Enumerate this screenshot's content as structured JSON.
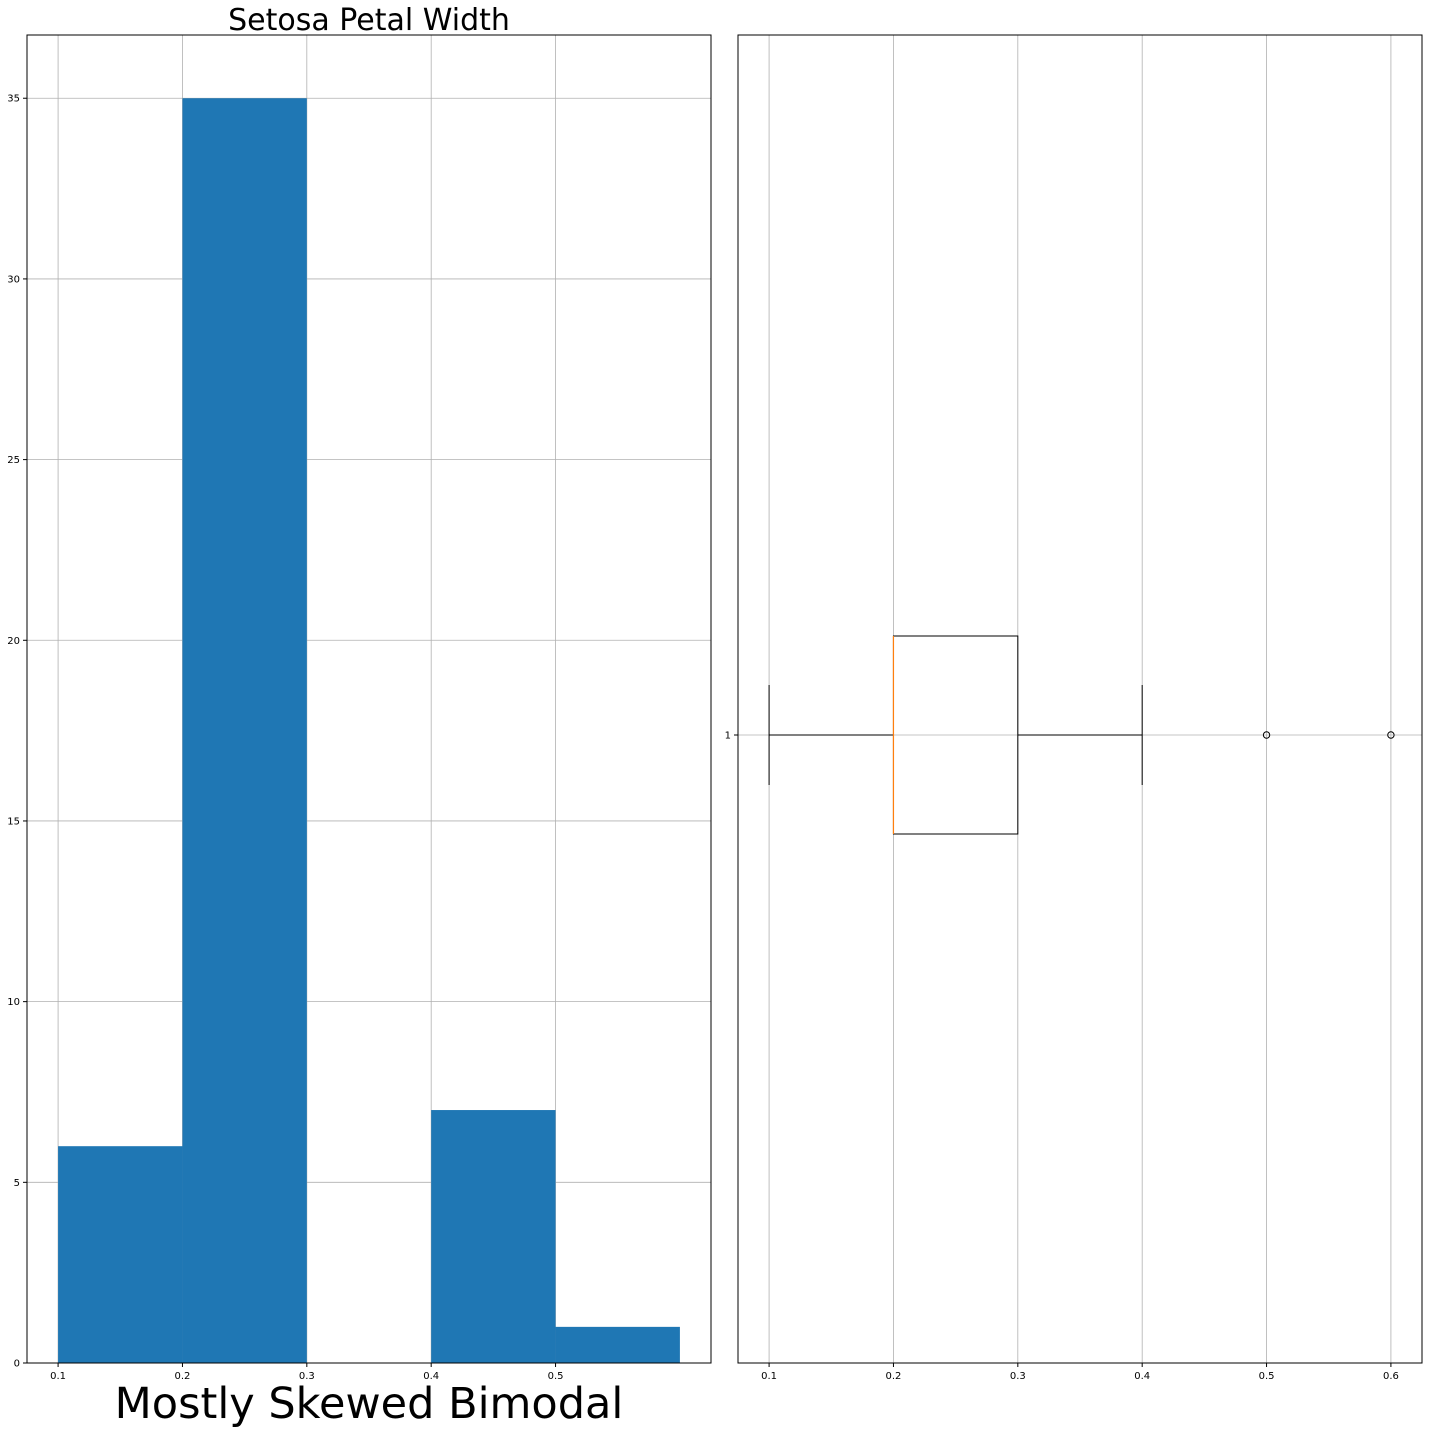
{
  "chart_data": [
    {
      "type": "histogram",
      "title": "Setosa Petal Width",
      "xlabel": "Mostly Skewed Bimodal",
      "ylabel": "",
      "bins": [
        {
          "start": 0.1,
          "end": 0.2,
          "count": 6
        },
        {
          "start": 0.2,
          "end": 0.3,
          "count": 35
        },
        {
          "start": 0.3,
          "end": 0.4,
          "count": 0
        },
        {
          "start": 0.4,
          "end": 0.5,
          "count": 7
        },
        {
          "start": 0.5,
          "end": 0.6,
          "count": 1
        }
      ],
      "xlim": [
        0.075,
        0.625
      ],
      "ylim": [
        0,
        36.75
      ],
      "xticks": [
        "0.1",
        "0.2",
        "0.3",
        "0.4",
        "0.5"
      ],
      "yticks": [
        "0",
        "5",
        "10",
        "15",
        "20",
        "25",
        "30",
        "35"
      ],
      "bar_color": "#1f77b4",
      "grid": true
    },
    {
      "type": "boxplot",
      "orientation": "horizontal",
      "title": "",
      "xlabel": "",
      "ylabel": "",
      "whisker_low": 0.1,
      "q1": 0.2,
      "median": 0.2,
      "q3": 0.3,
      "whisker_high": 0.4,
      "outliers": [
        0.5,
        0.6
      ],
      "position_label": "1",
      "xlim": [
        0.075,
        0.625
      ],
      "xticks": [
        "0.1",
        "0.2",
        "0.3",
        "0.4",
        "0.5",
        "0.6"
      ],
      "median_color": "#ff7f0e",
      "grid": true
    }
  ]
}
